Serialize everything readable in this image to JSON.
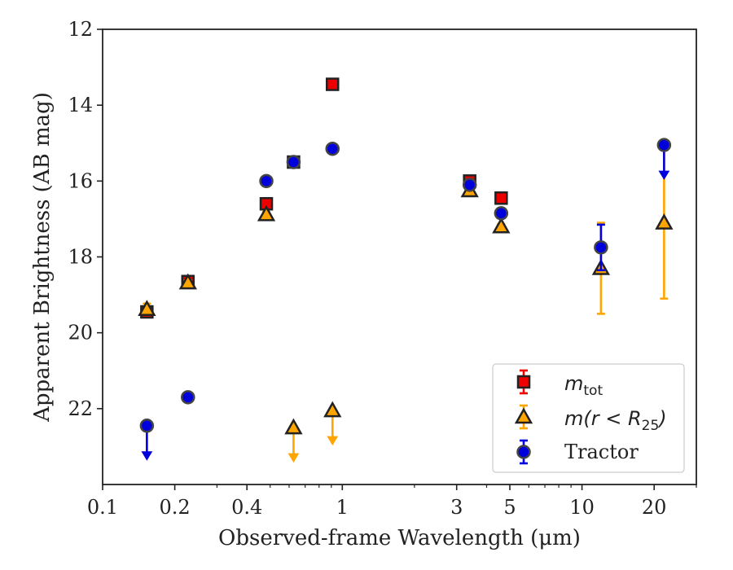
{
  "chart_data": {
    "type": "scatter",
    "xlabel": "Observed-frame Wavelength (μm)",
    "ylabel": "Apparent Brightness (AB mag)",
    "xscale": "log",
    "xlim": [
      0.1,
      30
    ],
    "ylim": [
      24,
      12
    ],
    "y_inverted": true,
    "grid": false,
    "legend_position": "lower-right",
    "x_ticks": [
      {
        "value": 0.1,
        "label": "0.1"
      },
      {
        "value": 0.2,
        "label": "0.2"
      },
      {
        "value": 0.4,
        "label": "0.4"
      },
      {
        "value": 1,
        "label": "1"
      },
      {
        "value": 3,
        "label": "3"
      },
      {
        "value": 5,
        "label": "5"
      },
      {
        "value": 10,
        "label": "10"
      },
      {
        "value": 20,
        "label": "20"
      }
    ],
    "y_ticks": [
      {
        "value": 12,
        "label": "12"
      },
      {
        "value": 14,
        "label": "14"
      },
      {
        "value": 16,
        "label": "16"
      },
      {
        "value": 18,
        "label": "18"
      },
      {
        "value": 20,
        "label": "20"
      },
      {
        "value": 22,
        "label": "22"
      }
    ],
    "legend": {
      "mtot_main": "m",
      "mtot_sub": "tot",
      "mr25_pre": "m(r < R",
      "mr25_sub": "25",
      "mr25_post": ")",
      "tractor": "Tractor"
    },
    "series": [
      {
        "key": "mtot",
        "marker": "square",
        "color": "#ee0000",
        "edge": "#222222",
        "points": [
          {
            "x": 0.153,
            "y": 19.45,
            "err": 0.12
          },
          {
            "x": 0.227,
            "y": 18.65,
            "err": 0.08
          },
          {
            "x": 0.482,
            "y": 16.6,
            "err": 0.06
          },
          {
            "x": 0.626,
            "y": 15.5,
            "err": 0.05
          },
          {
            "x": 0.91,
            "y": 13.45,
            "err": 0.05
          },
          {
            "x": 3.4,
            "y": 16.0,
            "err": 0.05
          },
          {
            "x": 4.6,
            "y": 16.45,
            "err": 0.06
          }
        ]
      },
      {
        "key": "mr25",
        "marker": "triangle",
        "color": "#ffa500",
        "edge": "#222222",
        "points": [
          {
            "x": 0.153,
            "y": 19.38,
            "err": 0.15
          },
          {
            "x": 0.227,
            "y": 18.68,
            "err": 0.06
          },
          {
            "x": 0.482,
            "y": 16.88,
            "err": 0.06
          },
          {
            "x": 0.626,
            "y": 22.5,
            "upper_limit": true
          },
          {
            "x": 0.91,
            "y": 22.05,
            "upper_limit": true
          },
          {
            "x": 3.4,
            "y": 16.25,
            "err": 0.05
          },
          {
            "x": 4.6,
            "y": 17.2,
            "err": 0.06
          },
          {
            "x": 12.0,
            "y": 18.3,
            "err": 1.2
          },
          {
            "x": 22.0,
            "y": 17.1,
            "err": 2.0
          }
        ]
      },
      {
        "key": "tractor",
        "marker": "circle",
        "color": "#0000dd",
        "edge": "#444444",
        "points": [
          {
            "x": 0.153,
            "y": 22.45,
            "upper_limit": true
          },
          {
            "x": 0.227,
            "y": 21.7,
            "err": 0.05
          },
          {
            "x": 0.482,
            "y": 16.0,
            "err": 0.05
          },
          {
            "x": 0.626,
            "y": 15.5,
            "err": 0.05
          },
          {
            "x": 0.91,
            "y": 15.15,
            "err": 0.05
          },
          {
            "x": 3.4,
            "y": 16.1,
            "err": 0.05
          },
          {
            "x": 4.6,
            "y": 16.85,
            "err": 0.05
          },
          {
            "x": 12.0,
            "y": 17.75,
            "err": 0.6
          },
          {
            "x": 22.0,
            "y": 15.05,
            "upper_limit": true
          }
        ]
      }
    ]
  }
}
